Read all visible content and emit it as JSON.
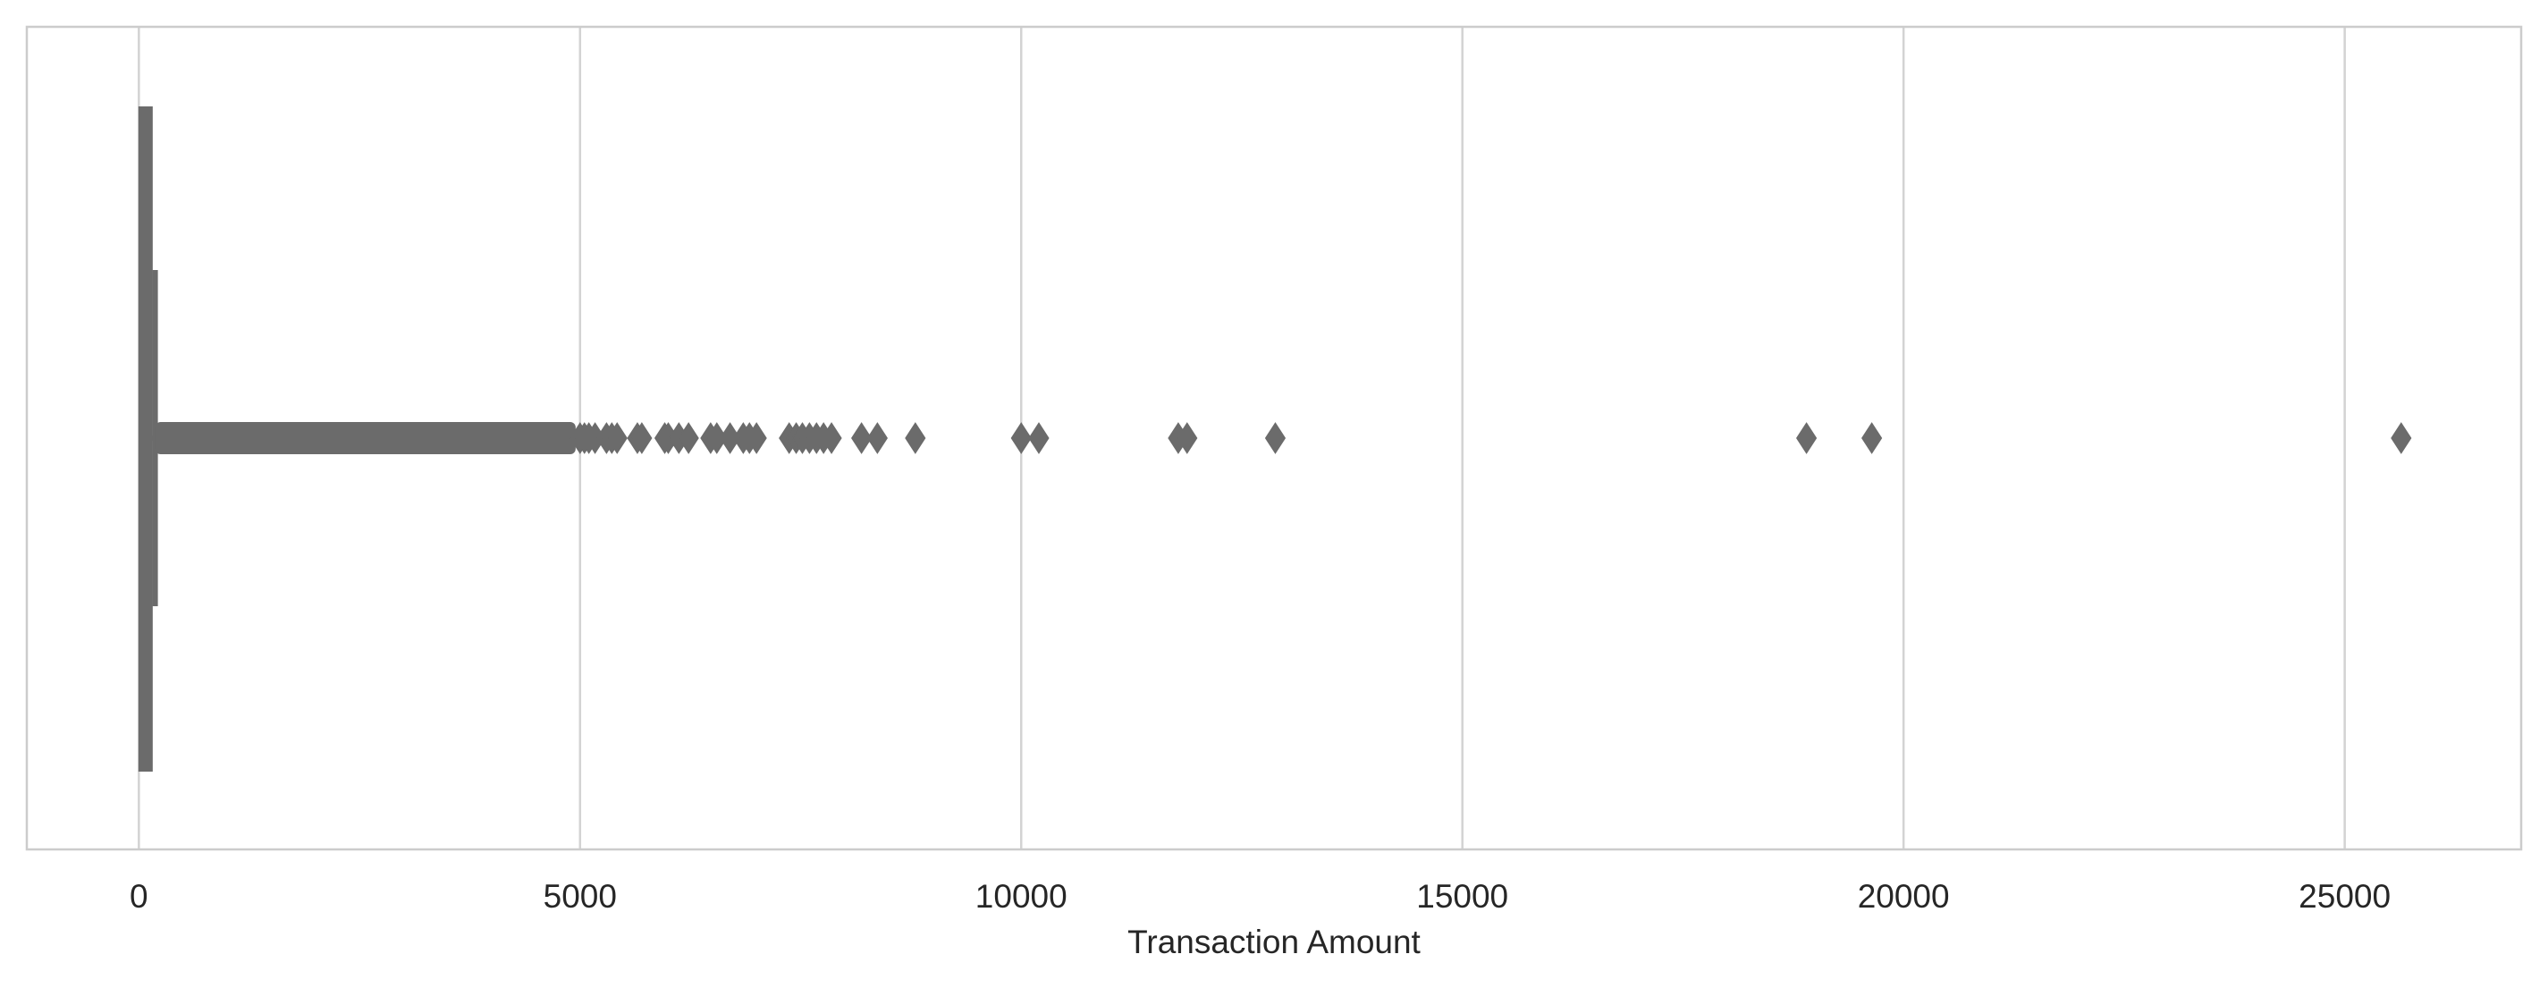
{
  "chart_data": {
    "type": "boxplot",
    "orientation": "horizontal",
    "xlabel": "Transaction Amount",
    "ylabel": "",
    "xlim": [
      -1270,
      27000
    ],
    "xticks": [
      0,
      5000,
      10000,
      15000,
      20000,
      25000
    ],
    "xtick_labels": [
      "0",
      "5000",
      "10000",
      "15000",
      "20000",
      "25000"
    ],
    "grid": "vertical",
    "box": {
      "q1": 5,
      "median": 22,
      "q3": 77,
      "whisker_low": 0,
      "whisker_high": 185
    },
    "outliers_dense_range": [
      185,
      4950
    ],
    "outliers": [
      5000,
      5050,
      5100,
      5170,
      5300,
      5360,
      5420,
      5650,
      5700,
      5960,
      6000,
      6120,
      6230,
      6480,
      6550,
      6700,
      6850,
      6920,
      7000,
      7370,
      7450,
      7520,
      7600,
      7680,
      7760,
      7850,
      8190,
      8370,
      8800,
      10000,
      10200,
      11780,
      11880,
      12880,
      18900,
      19640,
      25640
    ],
    "colors": {
      "box": "#6b6b6b",
      "grid": "#d3d3d3",
      "frame": "#cccccc",
      "text": "#262626"
    }
  }
}
